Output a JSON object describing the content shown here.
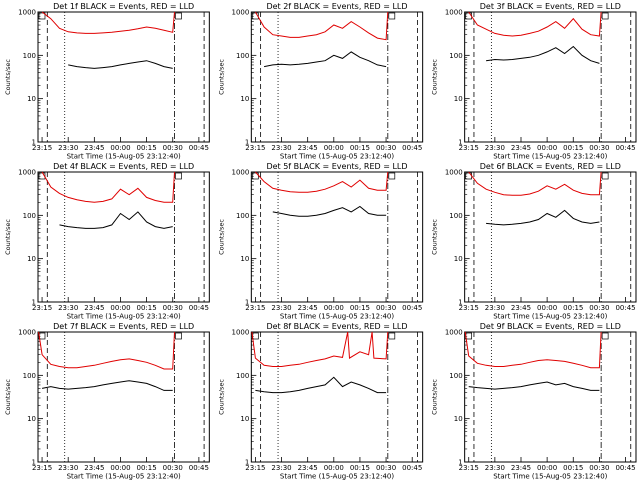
{
  "chart_data": [
    {
      "type": "line",
      "title": "Det 1f BLACK = Events, RED = LLD",
      "xlabel": "Start Time (15-Aug-05 23:12:40)",
      "ylabel": "Counts/sec",
      "x_ticks": [
        "23:15",
        "23:30",
        "23:45",
        "00:00",
        "00:15",
        "00:30",
        "00:45"
      ],
      "y_ticks": [
        "1",
        "10",
        "100",
        "1000"
      ],
      "yscale": "log",
      "ylim": [
        1,
        1000
      ],
      "xlim": [
        "23:12:40",
        "00:51"
      ],
      "series": [
        {
          "color": "#000000",
          "name": "Events",
          "x": [
            "23:30",
            "23:35",
            "23:40",
            "23:45",
            "23:50",
            "23:55",
            "00:00",
            "00:05",
            "00:10",
            "00:15",
            "00:20",
            "00:25",
            "00:30"
          ],
          "y": [
            60,
            55,
            52,
            50,
            52,
            55,
            60,
            65,
            70,
            75,
            65,
            55,
            50
          ]
        },
        {
          "color": "#e00000",
          "name": "LLD",
          "x": [
            "23:15",
            "23:20",
            "23:25",
            "23:30",
            "23:35",
            "23:40",
            "23:45",
            "23:50",
            "23:55",
            "00:00",
            "00:05",
            "00:10",
            "00:15",
            "00:20",
            "00:25",
            "00:30",
            "00:31"
          ],
          "y": [
            1000,
            700,
            420,
            350,
            330,
            320,
            320,
            330,
            340,
            360,
            380,
            410,
            450,
            420,
            380,
            340,
            1000
          ]
        }
      ]
    },
    {
      "type": "line",
      "title": "Det 2f BLACK = Events, RED = LLD",
      "xlabel": "Start Time (15-Aug-05 23:12:40)",
      "ylabel": "Counts/sec",
      "x_ticks": [
        "23:15",
        "23:30",
        "23:45",
        "00:00",
        "00:15",
        "00:30",
        "00:45"
      ],
      "y_ticks": [
        "1",
        "10",
        "100",
        "1000"
      ],
      "yscale": "log",
      "ylim": [
        1,
        1000
      ],
      "xlim": [
        "23:12:40",
        "00:51"
      ],
      "series": [
        {
          "color": "#000000",
          "name": "Events",
          "x": [
            "23:20",
            "23:25",
            "23:30",
            "23:35",
            "23:40",
            "23:45",
            "23:50",
            "23:55",
            "00:00",
            "00:05",
            "00:10",
            "00:15",
            "00:20",
            "00:25",
            "00:30"
          ],
          "y": [
            55,
            60,
            62,
            60,
            62,
            65,
            70,
            75,
            100,
            85,
            120,
            90,
            75,
            60,
            55
          ]
        },
        {
          "color": "#e00000",
          "name": "LLD",
          "x": [
            "23:15",
            "23:20",
            "23:25",
            "23:30",
            "23:35",
            "23:40",
            "23:45",
            "23:50",
            "23:55",
            "00:00",
            "00:05",
            "00:10",
            "00:15",
            "00:20",
            "00:25",
            "00:30",
            "00:31"
          ],
          "y": [
            1000,
            450,
            300,
            280,
            260,
            260,
            280,
            300,
            350,
            500,
            420,
            600,
            450,
            330,
            250,
            230,
            1000
          ]
        }
      ]
    },
    {
      "type": "line",
      "title": "Det 3f BLACK = Events, RED = LLD",
      "xlabel": "Start Time (15-Aug-05 23:12:40)",
      "ylabel": "Counts/sec",
      "x_ticks": [
        "23:15",
        "23:30",
        "23:45",
        "00:00",
        "00:15",
        "00:30",
        "00:45"
      ],
      "y_ticks": [
        "1",
        "10",
        "100",
        "1000"
      ],
      "yscale": "log",
      "ylim": [
        1,
        1000
      ],
      "xlim": [
        "23:12:40",
        "00:51"
      ],
      "series": [
        {
          "color": "#000000",
          "name": "Events",
          "x": [
            "23:25",
            "23:30",
            "23:35",
            "23:40",
            "23:45",
            "23:50",
            "23:55",
            "00:00",
            "00:05",
            "00:10",
            "00:15",
            "00:20",
            "00:25",
            "00:30"
          ],
          "y": [
            75,
            80,
            78,
            80,
            85,
            90,
            100,
            120,
            150,
            110,
            160,
            100,
            75,
            65
          ]
        },
        {
          "color": "#e00000",
          "name": "LLD",
          "x": [
            "23:15",
            "23:20",
            "23:25",
            "23:30",
            "23:35",
            "23:40",
            "23:45",
            "23:50",
            "23:55",
            "00:00",
            "00:05",
            "00:10",
            "00:15",
            "00:20",
            "00:25",
            "00:30",
            "00:31"
          ],
          "y": [
            1000,
            500,
            400,
            320,
            290,
            280,
            290,
            320,
            360,
            450,
            600,
            420,
            700,
            400,
            300,
            280,
            1000
          ]
        }
      ]
    },
    {
      "type": "line",
      "title": "Det 4f BLACK = Events, RED = LLD",
      "xlabel": "Start Time (15-Aug-05 23:12:40)",
      "ylabel": "Counts/sec",
      "x_ticks": [
        "23:15",
        "23:30",
        "23:45",
        "00:00",
        "00:15",
        "00:30",
        "00:45"
      ],
      "y_ticks": [
        "1",
        "10",
        "100",
        "1000"
      ],
      "yscale": "log",
      "ylim": [
        1,
        1000
      ],
      "xlim": [
        "23:12:40",
        "00:51"
      ],
      "series": [
        {
          "color": "#000000",
          "name": "Events",
          "x": [
            "23:25",
            "23:30",
            "23:35",
            "23:40",
            "23:45",
            "23:50",
            "23:55",
            "00:00",
            "00:05",
            "00:10",
            "00:15",
            "00:20",
            "00:25",
            "00:30"
          ],
          "y": [
            60,
            55,
            52,
            50,
            50,
            52,
            60,
            110,
            80,
            120,
            70,
            55,
            50,
            55
          ]
        },
        {
          "color": "#e00000",
          "name": "LLD",
          "x": [
            "23:15",
            "23:20",
            "23:25",
            "23:30",
            "23:35",
            "23:40",
            "23:45",
            "23:50",
            "23:55",
            "00:00",
            "00:05",
            "00:10",
            "00:15",
            "00:20",
            "00:25",
            "00:30",
            "00:31"
          ],
          "y": [
            1000,
            450,
            320,
            260,
            230,
            210,
            200,
            210,
            240,
            400,
            300,
            420,
            260,
            220,
            200,
            200,
            1000
          ]
        }
      ]
    },
    {
      "type": "line",
      "title": "Det 5f BLACK = Events, RED = LLD",
      "xlabel": "Start Time (15-Aug-05 23:12:40)",
      "ylabel": "Counts/sec",
      "x_ticks": [
        "23:15",
        "23:30",
        "23:45",
        "00:00",
        "00:15",
        "00:30",
        "00:45"
      ],
      "y_ticks": [
        "1",
        "10",
        "100",
        "1000"
      ],
      "yscale": "log",
      "ylim": [
        1,
        1000
      ],
      "xlim": [
        "23:12:40",
        "00:51"
      ],
      "series": [
        {
          "color": "#000000",
          "name": "Events",
          "x": [
            "23:25",
            "23:30",
            "23:35",
            "23:40",
            "23:45",
            "23:50",
            "23:55",
            "00:00",
            "00:05",
            "00:10",
            "00:15",
            "00:20",
            "00:25",
            "00:30"
          ],
          "y": [
            120,
            110,
            100,
            95,
            95,
            100,
            110,
            130,
            150,
            120,
            160,
            110,
            100,
            100
          ]
        },
        {
          "color": "#e00000",
          "name": "LLD",
          "x": [
            "23:15",
            "23:20",
            "23:25",
            "23:30",
            "23:35",
            "23:40",
            "23:45",
            "23:50",
            "23:55",
            "00:00",
            "00:05",
            "00:10",
            "00:15",
            "00:20",
            "00:25",
            "00:30",
            "00:31"
          ],
          "y": [
            1000,
            600,
            420,
            380,
            350,
            340,
            340,
            360,
            400,
            480,
            600,
            450,
            650,
            420,
            380,
            380,
            1000
          ]
        }
      ]
    },
    {
      "type": "line",
      "title": "Det 6f BLACK = Events, RED = LLD",
      "xlabel": "Start Time (15-Aug-05 23:12:40)",
      "ylabel": "Counts/sec",
      "x_ticks": [
        "23:15",
        "23:30",
        "23:45",
        "00:00",
        "00:15",
        "00:30",
        "00:45"
      ],
      "y_ticks": [
        "1",
        "10",
        "100",
        "1000"
      ],
      "yscale": "log",
      "ylim": [
        1,
        1000
      ],
      "xlim": [
        "23:12:40",
        "00:51"
      ],
      "series": [
        {
          "color": "#000000",
          "name": "Events",
          "x": [
            "23:25",
            "23:30",
            "23:35",
            "23:40",
            "23:45",
            "23:50",
            "23:55",
            "00:00",
            "00:05",
            "00:10",
            "00:15",
            "00:20",
            "00:25",
            "00:30"
          ],
          "y": [
            65,
            62,
            60,
            62,
            65,
            70,
            80,
            110,
            90,
            130,
            85,
            70,
            65,
            70
          ]
        },
        {
          "color": "#e00000",
          "name": "LLD",
          "x": [
            "23:15",
            "23:20",
            "23:25",
            "23:30",
            "23:35",
            "23:40",
            "23:45",
            "23:50",
            "23:55",
            "00:00",
            "00:05",
            "00:10",
            "00:15",
            "00:20",
            "00:25",
            "00:30",
            "00:31"
          ],
          "y": [
            1000,
            550,
            400,
            340,
            300,
            290,
            290,
            310,
            360,
            480,
            400,
            520,
            380,
            320,
            300,
            300,
            1000
          ]
        }
      ]
    },
    {
      "type": "line",
      "title": "Det 7f BLACK = Events, RED = LLD",
      "xlabel": "Start Time (15-Aug-05 23:12:40)",
      "ylabel": "Counts/sec",
      "x_ticks": [
        "23:15",
        "23:30",
        "23:45",
        "00:00",
        "00:15",
        "00:30",
        "00:45"
      ],
      "y_ticks": [
        "1",
        "10",
        "100",
        "1000"
      ],
      "yscale": "log",
      "ylim": [
        1,
        1000
      ],
      "xlim": [
        "23:12:40",
        "00:51"
      ],
      "series": [
        {
          "color": "#000000",
          "name": "Events",
          "x": [
            "23:15",
            "23:20",
            "23:25",
            "23:30",
            "23:35",
            "23:40",
            "23:45",
            "23:50",
            "23:55",
            "00:00",
            "00:05",
            "00:10",
            "00:15",
            "00:20",
            "00:25",
            "00:30"
          ],
          "y": [
            50,
            55,
            50,
            48,
            50,
            52,
            55,
            60,
            65,
            70,
            75,
            70,
            65,
            55,
            45,
            45
          ]
        },
        {
          "color": "#e00000",
          "name": "LLD",
          "x": [
            "23:13",
            "23:15",
            "23:20",
            "23:25",
            "23:30",
            "23:35",
            "23:40",
            "23:45",
            "23:50",
            "23:55",
            "00:00",
            "00:05",
            "00:10",
            "00:15",
            "00:20",
            "00:25",
            "00:30",
            "00:31"
          ],
          "y": [
            1000,
            300,
            180,
            160,
            150,
            150,
            160,
            170,
            190,
            210,
            230,
            240,
            220,
            200,
            170,
            140,
            140,
            1000
          ]
        }
      ]
    },
    {
      "type": "line",
      "title": "Det 8f BLACK = Events, RED = LLD",
      "xlabel": "Start Time (15-Aug-05 23:12:40)",
      "ylabel": "Counts/sec",
      "x_ticks": [
        "23:15",
        "23:30",
        "23:45",
        "00:00",
        "00:15",
        "00:30",
        "00:45"
      ],
      "y_ticks": [
        "1",
        "10",
        "100",
        "1000"
      ],
      "yscale": "log",
      "ylim": [
        1,
        1000
      ],
      "xlim": [
        "23:12:40",
        "00:51"
      ],
      "series": [
        {
          "color": "#000000",
          "name": "Events",
          "x": [
            "23:15",
            "23:20",
            "23:25",
            "23:30",
            "23:35",
            "23:40",
            "23:45",
            "23:50",
            "23:55",
            "00:00",
            "00:05",
            "00:10",
            "00:15",
            "00:20",
            "00:25",
            "00:30"
          ],
          "y": [
            45,
            42,
            40,
            40,
            42,
            45,
            50,
            55,
            60,
            90,
            55,
            70,
            60,
            50,
            40,
            40
          ]
        },
        {
          "color": "#e00000",
          "name": "LLD",
          "x": [
            "23:13",
            "23:15",
            "23:20",
            "23:25",
            "23:30",
            "23:35",
            "23:40",
            "23:45",
            "23:50",
            "23:55",
            "00:00",
            "00:05",
            "00:08",
            "00:09",
            "00:15",
            "00:20",
            "00:22",
            "00:23",
            "00:30",
            "00:31"
          ],
          "y": [
            1000,
            250,
            170,
            160,
            160,
            170,
            180,
            200,
            220,
            240,
            280,
            260,
            1000,
            250,
            350,
            300,
            1000,
            250,
            240,
            1000
          ]
        }
      ]
    },
    {
      "type": "line",
      "title": "Det 9f BLACK = Events, RED = LLD",
      "xlabel": "Start Time (15-Aug-05 23:12:40)",
      "ylabel": "Counts/sec",
      "x_ticks": [
        "23:15",
        "23:30",
        "23:45",
        "00:00",
        "00:15",
        "00:30",
        "00:45"
      ],
      "y_ticks": [
        "1",
        "10",
        "100",
        "1000"
      ],
      "yscale": "log",
      "ylim": [
        1,
        1000
      ],
      "xlim": [
        "23:12:40",
        "00:51"
      ],
      "series": [
        {
          "color": "#000000",
          "name": "Events",
          "x": [
            "23:15",
            "23:20",
            "23:25",
            "23:30",
            "23:35",
            "23:40",
            "23:45",
            "23:50",
            "23:55",
            "00:00",
            "00:05",
            "00:10",
            "00:15",
            "00:20",
            "00:25",
            "00:30"
          ],
          "y": [
            55,
            52,
            50,
            48,
            50,
            52,
            55,
            60,
            65,
            70,
            60,
            65,
            55,
            50,
            45,
            45
          ]
        },
        {
          "color": "#e00000",
          "name": "LLD",
          "x": [
            "23:13",
            "23:15",
            "23:20",
            "23:25",
            "23:30",
            "23:35",
            "23:40",
            "23:45",
            "23:50",
            "23:55",
            "00:00",
            "00:05",
            "00:10",
            "00:15",
            "00:20",
            "00:25",
            "00:30",
            "00:31"
          ],
          "y": [
            1000,
            280,
            190,
            170,
            160,
            160,
            170,
            180,
            200,
            220,
            230,
            220,
            210,
            190,
            170,
            150,
            150,
            1000
          ]
        }
      ]
    }
  ]
}
